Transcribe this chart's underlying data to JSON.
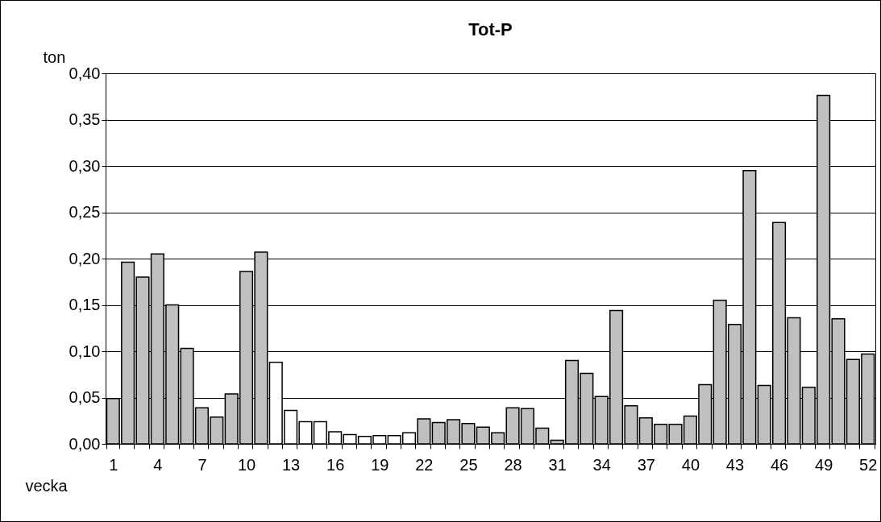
{
  "chart_data": {
    "type": "bar",
    "title": "Tot-P",
    "ylabel": "ton",
    "xlabel": "vecka",
    "categories": [
      "1",
      null,
      null,
      "4",
      null,
      null,
      "7",
      null,
      null,
      "10",
      null,
      null,
      "13",
      null,
      null,
      "16",
      null,
      null,
      "19",
      null,
      null,
      "22",
      null,
      null,
      "25",
      null,
      null,
      "28",
      null,
      null,
      "31",
      null,
      null,
      "34",
      null,
      null,
      "37",
      null,
      null,
      "40",
      null,
      null,
      "43",
      null,
      null,
      "46",
      null,
      null,
      "49",
      null,
      null,
      "52"
    ],
    "values": [
      0.049,
      0.196,
      0.18,
      0.205,
      0.15,
      0.103,
      0.039,
      0.029,
      0.054,
      0.186,
      0.207,
      0.088,
      0.036,
      0.024,
      0.024,
      0.013,
      0.01,
      0.008,
      0.009,
      0.009,
      0.012,
      0.027,
      0.023,
      0.026,
      0.022,
      0.018,
      0.012,
      0.039,
      0.038,
      0.017,
      0.004,
      0.09,
      0.076,
      0.051,
      0.144,
      0.041,
      0.028,
      0.021,
      0.021,
      0.03,
      0.064,
      0.155,
      0.129,
      0.295,
      0.063,
      0.239,
      0.136,
      0.061,
      0.376,
      0.135,
      0.091,
      0.097
    ],
    "colors": [
      "#c0c0c0",
      "#c0c0c0",
      "#c0c0c0",
      "#c0c0c0",
      "#c0c0c0",
      "#c0c0c0",
      "#c0c0c0",
      "#c0c0c0",
      "#c0c0c0",
      "#c0c0c0",
      "#c0c0c0",
      "#ffffff",
      "#ffffff",
      "#ffffff",
      "#ffffff",
      "#ffffff",
      "#ffffff",
      "#ffffff",
      "#ffffff",
      "#ffffff",
      "#ffffff",
      "#c0c0c0",
      "#c0c0c0",
      "#c0c0c0",
      "#c0c0c0",
      "#c0c0c0",
      "#c0c0c0",
      "#c0c0c0",
      "#c0c0c0",
      "#c0c0c0",
      "#c0c0c0",
      "#c0c0c0",
      "#c0c0c0",
      "#c0c0c0",
      "#c0c0c0",
      "#c0c0c0",
      "#c0c0c0",
      "#c0c0c0",
      "#c0c0c0",
      "#c0c0c0",
      "#c0c0c0",
      "#c0c0c0",
      "#c0c0c0",
      "#c0c0c0",
      "#c0c0c0",
      "#c0c0c0",
      "#c0c0c0",
      "#c0c0c0",
      "#c0c0c0",
      "#c0c0c0",
      "#c0c0c0",
      "#c0c0c0"
    ],
    "ylim": [
      0,
      0.4
    ],
    "yticks": [
      {
        "value": 0,
        "label": "0,00"
      },
      {
        "value": 0.05,
        "label": "0,05"
      },
      {
        "value": 0.1,
        "label": "0,10"
      },
      {
        "value": 0.15,
        "label": "0,15"
      },
      {
        "value": 0.2,
        "label": "0,20"
      },
      {
        "value": 0.25,
        "label": "0,25"
      },
      {
        "value": 0.3,
        "label": "0,30"
      },
      {
        "value": 0.35,
        "label": "0,35"
      },
      {
        "value": 0.4,
        "label": "0,40"
      }
    ],
    "grid": "y"
  }
}
